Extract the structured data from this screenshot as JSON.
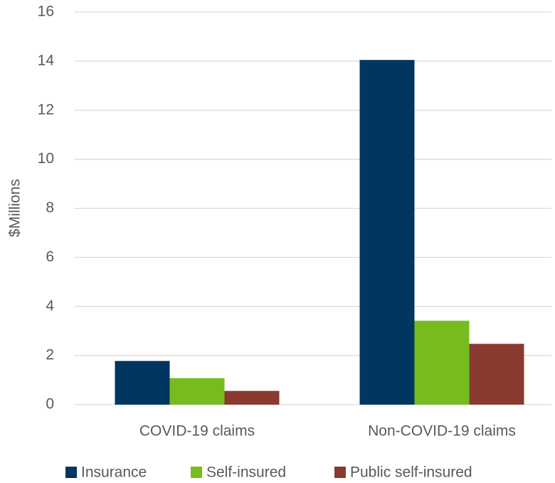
{
  "chart_data": {
    "type": "bar",
    "y_label": "$Millions",
    "categories": [
      "COVID-19 claims",
      "Non-COVID-19 claims"
    ],
    "series": [
      {
        "name": "Insurance",
        "color": "#003660",
        "values": [
          1.78,
          14.05
        ]
      },
      {
        "name": "Self-insured",
        "color": "#77bc1f",
        "values": [
          1.08,
          3.42
        ]
      },
      {
        "name": "Public self-insured",
        "color": "#8b3a2f",
        "values": [
          0.56,
          2.48
        ]
      }
    ],
    "ylim": [
      0,
      16
    ],
    "yticks": [
      0,
      2,
      4,
      6,
      8,
      10,
      12,
      14,
      16
    ],
    "grid": true,
    "legend": "bottom"
  }
}
